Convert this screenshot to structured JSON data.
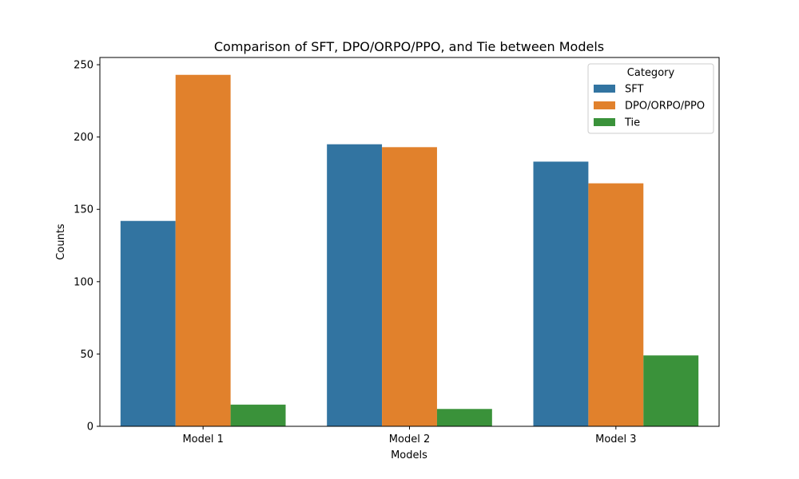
{
  "chart_data": {
    "type": "bar",
    "title": "Comparison of SFT, DPO/ORPO/PPO, and Tie between Models",
    "xlabel": "Models",
    "ylabel": "Counts",
    "categories": [
      "Model 1",
      "Model 2",
      "Model 3"
    ],
    "series": [
      {
        "name": "SFT",
        "values": [
          142,
          195,
          183
        ],
        "color": "#3274a1"
      },
      {
        "name": "DPO/ORPO/PPO",
        "values": [
          243,
          193,
          168
        ],
        "color": "#e1812c"
      },
      {
        "name": "Tie",
        "values": [
          15,
          12,
          49
        ],
        "color": "#3a923a"
      }
    ],
    "ylim": [
      0,
      255
    ],
    "yticks": [
      0,
      50,
      100,
      150,
      200,
      250
    ],
    "legend": {
      "title": "Category",
      "position": "top-right"
    },
    "grid": false
  }
}
